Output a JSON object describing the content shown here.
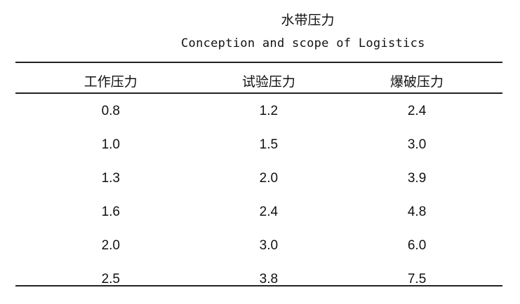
{
  "title": "水带压力",
  "subtitle": "Conception and scope of Logistics",
  "table": {
    "headers": [
      "工作压力",
      "试验压力",
      "爆破压力"
    ],
    "rows": [
      [
        "0.8",
        "1.2",
        "2.4"
      ],
      [
        "1.0",
        "1.5",
        "3.0"
      ],
      [
        "1.3",
        "2.0",
        "3.9"
      ],
      [
        "1.6",
        "2.4",
        "4.8"
      ],
      [
        "2.0",
        "3.0",
        "6.0"
      ],
      [
        "2.5",
        "3.8",
        "7.5"
      ]
    ]
  }
}
